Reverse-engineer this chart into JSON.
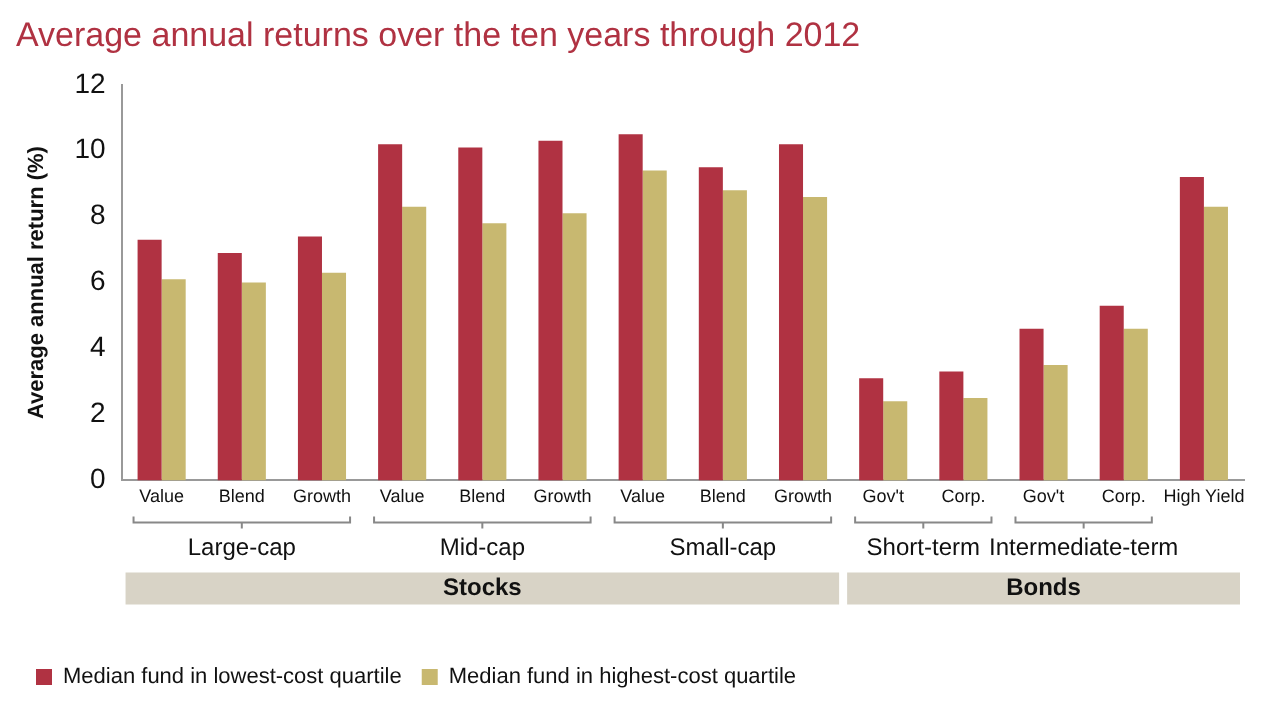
{
  "chart_data": {
    "type": "bar",
    "title": "Average annual returns over the ten years through 2012",
    "ylabel": "Average annual return (%)",
    "categories": [
      "Value",
      "Blend",
      "Growth",
      "Value",
      "Blend",
      "Growth",
      "Value",
      "Blend",
      "Growth",
      "Gov't",
      "Corp.",
      "Gov't",
      "Corp.",
      "High Yield"
    ],
    "series": [
      {
        "name": "Median fund in lowest-cost quartile",
        "color": "#b03242",
        "values": [
          7.3,
          6.9,
          7.4,
          10.2,
          10.1,
          10.3,
          10.5,
          9.5,
          10.2,
          3.1,
          3.3,
          4.6,
          5.3,
          9.2
        ]
      },
      {
        "name": "Median fund in highest-cost quartile",
        "color": "#c8b870",
        "values": [
          6.1,
          6.0,
          6.3,
          8.3,
          7.8,
          8.1,
          9.4,
          8.8,
          8.6,
          2.4,
          2.5,
          3.5,
          4.6,
          8.3
        ]
      }
    ],
    "ylim": [
      0,
      12
    ],
    "yticks": [
      0,
      2,
      4,
      6,
      8,
      10,
      12
    ],
    "grid": false,
    "legend": "bottom left",
    "annotations": [
      "Large-cap",
      "Mid-cap",
      "Small-cap",
      "Short-term",
      "Intermediate-term",
      "Stocks",
      "Bonds"
    ]
  }
}
